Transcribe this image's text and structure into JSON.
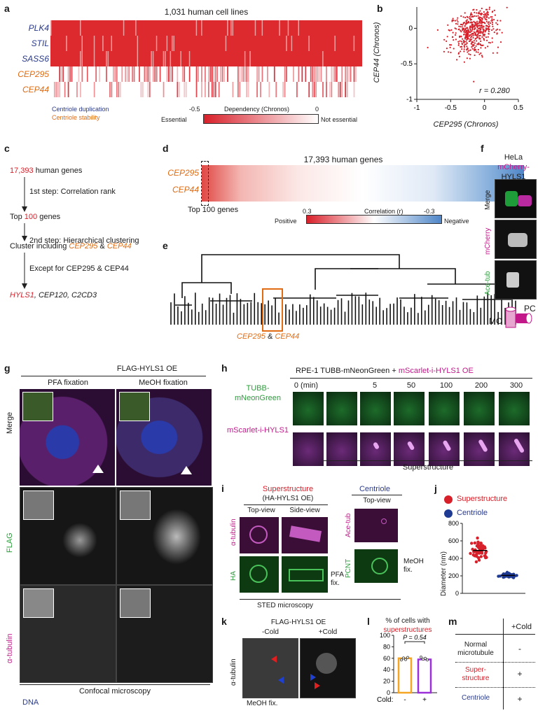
{
  "panel_labels": {
    "a": "a",
    "b": "b",
    "c": "c",
    "d": "d",
    "e": "e",
    "f": "f",
    "g": "g",
    "h": "h",
    "i": "i",
    "j": "j",
    "k": "k",
    "l": "l",
    "m": "m"
  },
  "panel_a": {
    "title": "1,031 human cell lines",
    "rows": [
      "PLK4",
      "STIL",
      "SASS6",
      "CEP295",
      "CEP44"
    ],
    "legend_dup": "Centriole duplication",
    "legend_stab": "Centriole stability",
    "colorbar_title": "Dependency (Chronos)",
    "colorbar_min": "-0.5",
    "colorbar_max": "0",
    "colorbar_left": "Essential",
    "colorbar_right": "Not essential",
    "colors": {
      "essential": "#d8202a",
      "neutral": "#ffffff",
      "dup": "#2b3b8f",
      "stab": "#e06b12"
    }
  },
  "chart_data": {
    "type": "scatter",
    "xlabel": "CEP295 (Chronos)",
    "ylabel": "CEP44 (Chronos)",
    "xlim": [
      -1,
      0.5
    ],
    "ylim": [
      -1,
      0.3
    ],
    "xticks": [
      "-1",
      "-0.5",
      "0",
      "0.5"
    ],
    "yticks": [
      "-1",
      "-0.5",
      "0"
    ],
    "annotation": "r = 0.280",
    "point_color": "#d8202a"
  },
  "panel_c": {
    "start_num": "17,393",
    "start_rest": " human genes",
    "step1": "1st step: Correlation rank",
    "top_pre": "Top ",
    "top_num": "100",
    "top_rest": " genes",
    "step2": "2nd step: Hierarchical clustering",
    "cluster_pre": "Cluster including ",
    "cluster_g1": "CEP295",
    "cluster_amp": " & ",
    "cluster_g2": "CEP44",
    "except": "Except for CEP295 & CEP44",
    "result1": "HYLS1",
    "result_rest": ", CEP120, C2CD3"
  },
  "panel_d": {
    "title": "17,393 human genes",
    "rows": [
      "CEP295",
      "CEP44"
    ],
    "top_label": "Top 100 genes",
    "colorbar_title": "Correlation (r)",
    "colorbar_min": "0.3",
    "colorbar_max": "-0.3",
    "colorbar_left": "Positive",
    "colorbar_right": "Negative"
  },
  "panel_e": {
    "g1": "CEP295",
    "amp": " & ",
    "g2": "CEP44"
  },
  "panel_f": {
    "title_cell": "HeLa",
    "title_tag": "mCherry-",
    "title_prot": "HYLS1",
    "rows": [
      "Merge",
      "mCherry",
      "Ace-tub"
    ],
    "mc": "MC",
    "pc": "PC"
  },
  "panel_g": {
    "title": "FLAG-HYLS1 OE",
    "col1": "PFA fixation",
    "col2": "MeOH fixation",
    "rows": [
      "Merge",
      "FLAG",
      "α-tubulin"
    ],
    "dna": "DNA",
    "footer": "Confocal microscopy"
  },
  "panel_h": {
    "title_pre": "RPE-1 TUBB-mNeonGreen + ",
    "title_mag": "mScarlet-i-HYLS1 OE",
    "times": [
      "0 (min)",
      "5",
      "50",
      "100",
      "200",
      "300"
    ],
    "row1": "TUBB-mNeonGreen",
    "row2": "mScarlet-i-HYLS1",
    "footer": "Superstructure"
  },
  "panel_i": {
    "left_title": "Superstructure",
    "left_sub": "(HA-HYLS1 OE)",
    "top_view": "Top-view",
    "side_view": "Side-view",
    "right_title": "Centriole",
    "right_top": "Top-view",
    "row_a": "α-tubulin",
    "row_ha": "HA",
    "row_ace": "Ace-tub",
    "row_pcnt": "PCNT",
    "pfa": "PFA fix.",
    "meoh": "MeOH fix.",
    "footer": "STED microscopy"
  },
  "panel_j": {
    "legend_super": "Superstructure",
    "legend_cent": "Centriole",
    "ylabel": "Diameter (nm)",
    "yticks": [
      "0",
      "200",
      "400",
      "600",
      "800"
    ],
    "super_mean": 490,
    "cent_mean": 205,
    "colors": {
      "super": "#d8202a",
      "cent": "#1f3a93"
    }
  },
  "panel_k": {
    "title": "FLAG-HYLS1 OE",
    "col1": "-Cold",
    "col2": "+Cold",
    "ylabel": "α-tubulin",
    "footer": "MeOH fix."
  },
  "panel_l": {
    "title1": "% of cells with",
    "title2": "superstructures",
    "pval": "P = 0.54",
    "yticks": [
      "0",
      "20",
      "40",
      "60",
      "80",
      "100"
    ],
    "cold_label": "Cold:",
    "x_labels": [
      "-",
      "+"
    ],
    "values": [
      60,
      58
    ],
    "colors": [
      "#f5a623",
      "#9b30d9"
    ]
  },
  "panel_m": {
    "header": "+Cold",
    "rows": [
      {
        "label": "Normal\nmicrotubule",
        "value": "-"
      },
      {
        "label": "Super-\nstructure",
        "value": "+"
      },
      {
        "label": "Centriole",
        "value": "+"
      }
    ]
  }
}
